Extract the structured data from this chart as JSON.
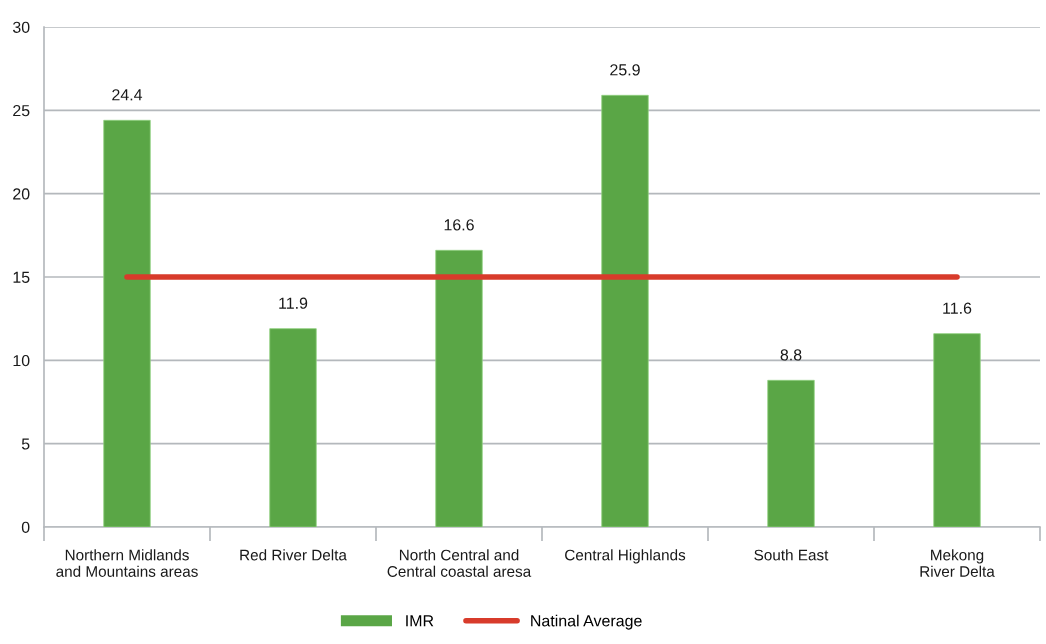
{
  "chart_data": {
    "type": "bar",
    "categories": [
      "Northern Midlands\nand Mountains areas",
      "Red River Delta",
      "North Central and\nCentral coastal aresa",
      "Central Highlands",
      "South East",
      "Mekong\nRiver Delta"
    ],
    "series": [
      {
        "name": "IMR",
        "color": "#5aa646",
        "values": [
          24.4,
          11.9,
          16.6,
          25.9,
          8.8,
          11.6
        ],
        "value_labels": [
          "24.4",
          "11.9",
          "16.6",
          "25.9",
          "8.8",
          "11.6"
        ]
      },
      {
        "name": "Natinal Average",
        "type": "line",
        "color": "#d83b2b",
        "values": [
          15,
          15,
          15,
          15,
          15,
          15
        ]
      }
    ],
    "ylim": [
      0,
      30
    ],
    "yticks": [
      0,
      5,
      10,
      15,
      20,
      25,
      30
    ],
    "grid": "y",
    "legend": "bottom"
  }
}
